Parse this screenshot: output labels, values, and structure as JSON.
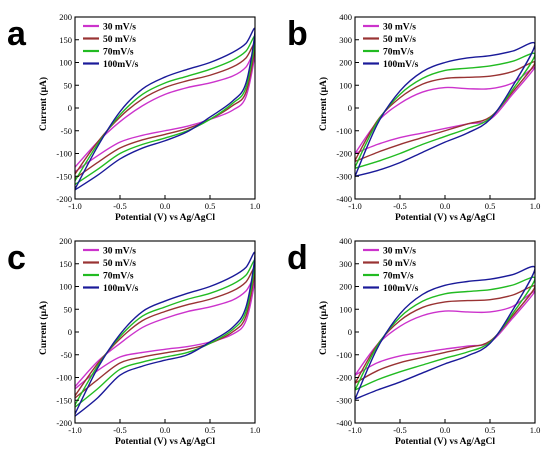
{
  "colors": {
    "30 mV/s": "#cc33cc",
    "50 mV/s": "#993333",
    "70mV/s": "#22bb22",
    "100mV/s": "#1a1a99"
  },
  "chart_data": [
    {
      "panel": "a",
      "type": "line",
      "xlabel": "Potential (V) vs Ag/AgCl",
      "ylabel": "Current (μA)",
      "xlim": [
        -1.0,
        1.0
      ],
      "ylim": [
        -200,
        200
      ],
      "xticks": [
        "-1.0",
        "-0.5",
        "0.0",
        "0.5",
        "1.0"
      ],
      "yticks": [
        "-200",
        "-150",
        "-100",
        "-50",
        "0",
        "50",
        "100",
        "150",
        "200"
      ],
      "legend": "top-left",
      "series": [
        {
          "name": "30 mV/s",
          "color": "#cc33cc",
          "x": [
            -1.0,
            -0.75,
            -0.5,
            -0.25,
            0.0,
            0.25,
            0.5,
            0.75,
            0.9,
            1.0,
            0.9,
            0.75,
            0.5,
            0.25,
            0.0,
            -0.25,
            -0.5,
            -0.75,
            -1.0
          ],
          "y": [
            -130,
            -75,
            -30,
            5,
            30,
            45,
            55,
            70,
            90,
            125,
            25,
            -5,
            -25,
            -40,
            -50,
            -60,
            -75,
            -105,
            -140
          ]
        },
        {
          "name": "50 mV/s",
          "color": "#993333",
          "x": [
            -1.0,
            -0.75,
            -0.5,
            -0.25,
            0.0,
            0.25,
            0.5,
            0.75,
            0.9,
            1.0,
            0.9,
            0.75,
            0.5,
            0.25,
            0.0,
            -0.25,
            -0.5,
            -0.75,
            -1.0
          ],
          "y": [
            -145,
            -75,
            -20,
            20,
            45,
            60,
            72,
            90,
            110,
            140,
            35,
            5,
            -25,
            -45,
            -58,
            -70,
            -88,
            -120,
            -155
          ]
        },
        {
          "name": "70mV/s",
          "color": "#22bb22",
          "x": [
            -1.0,
            -0.75,
            -0.5,
            -0.25,
            0.0,
            0.25,
            0.5,
            0.75,
            0.9,
            1.0,
            0.9,
            0.75,
            0.5,
            0.25,
            0.0,
            -0.25,
            -0.5,
            -0.75,
            -1.0
          ],
          "y": [
            -160,
            -80,
            -15,
            30,
            55,
            70,
            85,
            105,
            125,
            155,
            45,
            10,
            -25,
            -50,
            -66,
            -80,
            -100,
            -135,
            -168
          ]
        },
        {
          "name": "100mV/s",
          "color": "#1a1a99",
          "x": [
            -1.0,
            -0.75,
            -0.5,
            -0.25,
            0.0,
            0.25,
            0.5,
            0.75,
            0.9,
            1.0,
            0.9,
            0.75,
            0.5,
            0.25,
            0.0,
            -0.25,
            -0.5,
            -0.75,
            -1.0
          ],
          "y": [
            -178,
            -85,
            -8,
            42,
            68,
            85,
            100,
            122,
            142,
            172,
            55,
            15,
            -20,
            -52,
            -72,
            -88,
            -112,
            -148,
            -180
          ]
        }
      ]
    },
    {
      "panel": "b",
      "type": "line",
      "xlabel": "Potential (V) vs Ag/AgCl",
      "ylabel": "Current (μA)",
      "xlim": [
        -1.0,
        1.0
      ],
      "ylim": [
        -400,
        400
      ],
      "xticks": [
        "-1.0",
        "-0.5",
        "0.0",
        "0.5",
        "1.0"
      ],
      "yticks": [
        "-400",
        "-300",
        "-200",
        "-100",
        "0",
        "100",
        "200",
        "300",
        "400"
      ],
      "legend": "top-left",
      "series": [
        {
          "name": "30 mV/s",
          "color": "#cc33cc",
          "x": [
            -1.0,
            -0.75,
            -0.5,
            -0.25,
            0.0,
            0.25,
            0.5,
            0.75,
            1.0,
            0.75,
            0.5,
            0.25,
            0.0,
            -0.25,
            -0.5,
            -0.75,
            -1.0
          ],
          "y": [
            -200,
            -60,
            20,
            70,
            90,
            85,
            85,
            110,
            180,
            60,
            -50,
            -70,
            -90,
            -110,
            -130,
            -160,
            -200
          ]
        },
        {
          "name": "50 mV/s",
          "color": "#993333",
          "x": [
            -1.0,
            -0.75,
            -0.5,
            -0.25,
            0.0,
            0.25,
            0.5,
            0.75,
            1.0,
            0.75,
            0.5,
            0.25,
            0.0,
            -0.25,
            -0.5,
            -0.75,
            -1.0
          ],
          "y": [
            -230,
            -55,
            45,
            105,
            130,
            135,
            140,
            160,
            200,
            70,
            -40,
            -70,
            -100,
            -130,
            -160,
            -195,
            -235
          ]
        },
        {
          "name": "70mV/s",
          "color": "#22bb22",
          "x": [
            -1.0,
            -0.75,
            -0.5,
            -0.25,
            0.0,
            0.25,
            0.5,
            0.75,
            1.0,
            0.75,
            0.5,
            0.25,
            0.0,
            -0.25,
            -0.5,
            -0.75,
            -1.0
          ],
          "y": [
            -260,
            -60,
            60,
            130,
            165,
            175,
            185,
            205,
            235,
            80,
            -45,
            -90,
            -125,
            -160,
            -200,
            -235,
            -265
          ]
        },
        {
          "name": "100mV/s",
          "color": "#1a1a99",
          "x": [
            -1.0,
            -0.75,
            -0.5,
            -0.25,
            0.0,
            0.25,
            0.5,
            0.75,
            1.0,
            0.75,
            0.5,
            0.25,
            0.0,
            -0.25,
            -0.5,
            -0.75,
            -1.0
          ],
          "y": [
            -300,
            -70,
            75,
            160,
            200,
            220,
            230,
            250,
            280,
            95,
            -50,
            -110,
            -150,
            -195,
            -240,
            -275,
            -300
          ]
        }
      ]
    },
    {
      "panel": "c",
      "type": "line",
      "xlabel": "Potential (V) vs Ag/AgCl",
      "ylabel": "Current (μA)",
      "xlim": [
        -1.0,
        1.0
      ],
      "ylim": [
        -200,
        200
      ],
      "xticks": [
        "-1.0",
        "-0.5",
        "0.0",
        "0.5",
        "1.0"
      ],
      "yticks": [
        "-200",
        "-150",
        "-100",
        "-50",
        "0",
        "50",
        "100",
        "150",
        "200"
      ],
      "legend": "top-left",
      "series": [
        {
          "name": "30 mV/s",
          "color": "#cc33cc",
          "x": [
            -1.0,
            -0.75,
            -0.5,
            -0.25,
            0.0,
            0.25,
            0.5,
            0.75,
            0.9,
            1.0,
            0.9,
            0.75,
            0.5,
            0.25,
            0.0,
            -0.25,
            -0.5,
            -0.75,
            -1.0
          ],
          "y": [
            -120,
            -65,
            -25,
            10,
            30,
            45,
            55,
            70,
            90,
            120,
            25,
            -5,
            -22,
            -32,
            -38,
            -45,
            -55,
            -85,
            -125
          ]
        },
        {
          "name": "50 mV/s",
          "color": "#993333",
          "x": [
            -1.0,
            -0.75,
            -0.5,
            -0.25,
            0.0,
            0.25,
            0.5,
            0.75,
            0.9,
            1.0,
            0.9,
            0.75,
            0.5,
            0.25,
            0.0,
            -0.25,
            -0.5,
            -0.75,
            -1.0
          ],
          "y": [
            -140,
            -70,
            -15,
            25,
            45,
            60,
            72,
            90,
            110,
            140,
            35,
            0,
            -25,
            -38,
            -46,
            -55,
            -68,
            -105,
            -145
          ]
        },
        {
          "name": "70mV/s",
          "color": "#22bb22",
          "x": [
            -1.0,
            -0.75,
            -0.5,
            -0.25,
            0.0,
            0.25,
            0.5,
            0.75,
            0.9,
            1.0,
            0.9,
            0.75,
            0.5,
            0.25,
            0.0,
            -0.25,
            -0.5,
            -0.75,
            -1.0
          ],
          "y": [
            -160,
            -75,
            -10,
            35,
            55,
            72,
            85,
            105,
            125,
            155,
            45,
            5,
            -25,
            -45,
            -55,
            -66,
            -82,
            -125,
            -165
          ]
        },
        {
          "name": "100mV/s",
          "color": "#1a1a99",
          "x": [
            -1.0,
            -0.75,
            -0.5,
            -0.25,
            0.0,
            0.25,
            0.5,
            0.75,
            0.9,
            1.0,
            0.9,
            0.75,
            0.5,
            0.25,
            0.0,
            -0.25,
            -0.5,
            -0.75,
            -1.0
          ],
          "y": [
            -180,
            -80,
            -5,
            45,
            68,
            85,
            100,
            122,
            142,
            172,
            55,
            10,
            -22,
            -50,
            -62,
            -75,
            -95,
            -145,
            -185
          ]
        }
      ]
    },
    {
      "panel": "d",
      "type": "line",
      "xlabel": "Potential (V) vs Ag/AgCl",
      "ylabel": "Current (μA)",
      "xlim": [
        -1.0,
        1.0
      ],
      "ylim": [
        -400,
        400
      ],
      "xticks": [
        "-1.0",
        "-0.5",
        "0.0",
        "0.5",
        "1.0"
      ],
      "yticks": [
        "-400",
        "-300",
        "-200",
        "-100",
        "0",
        "100",
        "200",
        "300",
        "400"
      ],
      "legend": "top-left",
      "series": [
        {
          "name": "30 mV/s",
          "color": "#cc33cc",
          "x": [
            -1.0,
            -0.75,
            -0.5,
            -0.25,
            0.0,
            0.25,
            0.5,
            0.75,
            1.0,
            0.75,
            0.5,
            0.25,
            0.0,
            -0.25,
            -0.5,
            -0.75,
            -1.0
          ],
          "y": [
            -190,
            -55,
            25,
            72,
            92,
            88,
            88,
            112,
            180,
            60,
            -45,
            -62,
            -75,
            -90,
            -105,
            -135,
            -190
          ]
        },
        {
          "name": "50 mV/s",
          "color": "#993333",
          "x": [
            -1.0,
            -0.75,
            -0.5,
            -0.25,
            0.0,
            0.25,
            0.5,
            0.75,
            1.0,
            0.75,
            0.5,
            0.25,
            0.0,
            -0.25,
            -0.5,
            -0.75,
            -1.0
          ],
          "y": [
            -225,
            -55,
            50,
            108,
            132,
            138,
            142,
            162,
            200,
            70,
            -40,
            -68,
            -90,
            -112,
            -135,
            -170,
            -225
          ]
        },
        {
          "name": "70mV/s",
          "color": "#22bb22",
          "x": [
            -1.0,
            -0.75,
            -0.5,
            -0.25,
            0.0,
            0.25,
            0.5,
            0.75,
            1.0,
            0.75,
            0.5,
            0.25,
            0.0,
            -0.25,
            -0.5,
            -0.75,
            -1.0
          ],
          "y": [
            -255,
            -60,
            65,
            135,
            168,
            178,
            186,
            206,
            235,
            80,
            -45,
            -88,
            -115,
            -145,
            -175,
            -210,
            -255
          ]
        },
        {
          "name": "100mV/s",
          "color": "#1a1a99",
          "x": [
            -1.0,
            -0.75,
            -0.5,
            -0.25,
            0.0,
            0.25,
            0.5,
            0.75,
            1.0,
            0.75,
            0.5,
            0.25,
            0.0,
            -0.25,
            -0.5,
            -0.75,
            -1.0
          ],
          "y": [
            -295,
            -70,
            80,
            165,
            205,
            222,
            232,
            252,
            280,
            95,
            -50,
            -105,
            -140,
            -180,
            -220,
            -255,
            -295
          ]
        }
      ]
    }
  ]
}
